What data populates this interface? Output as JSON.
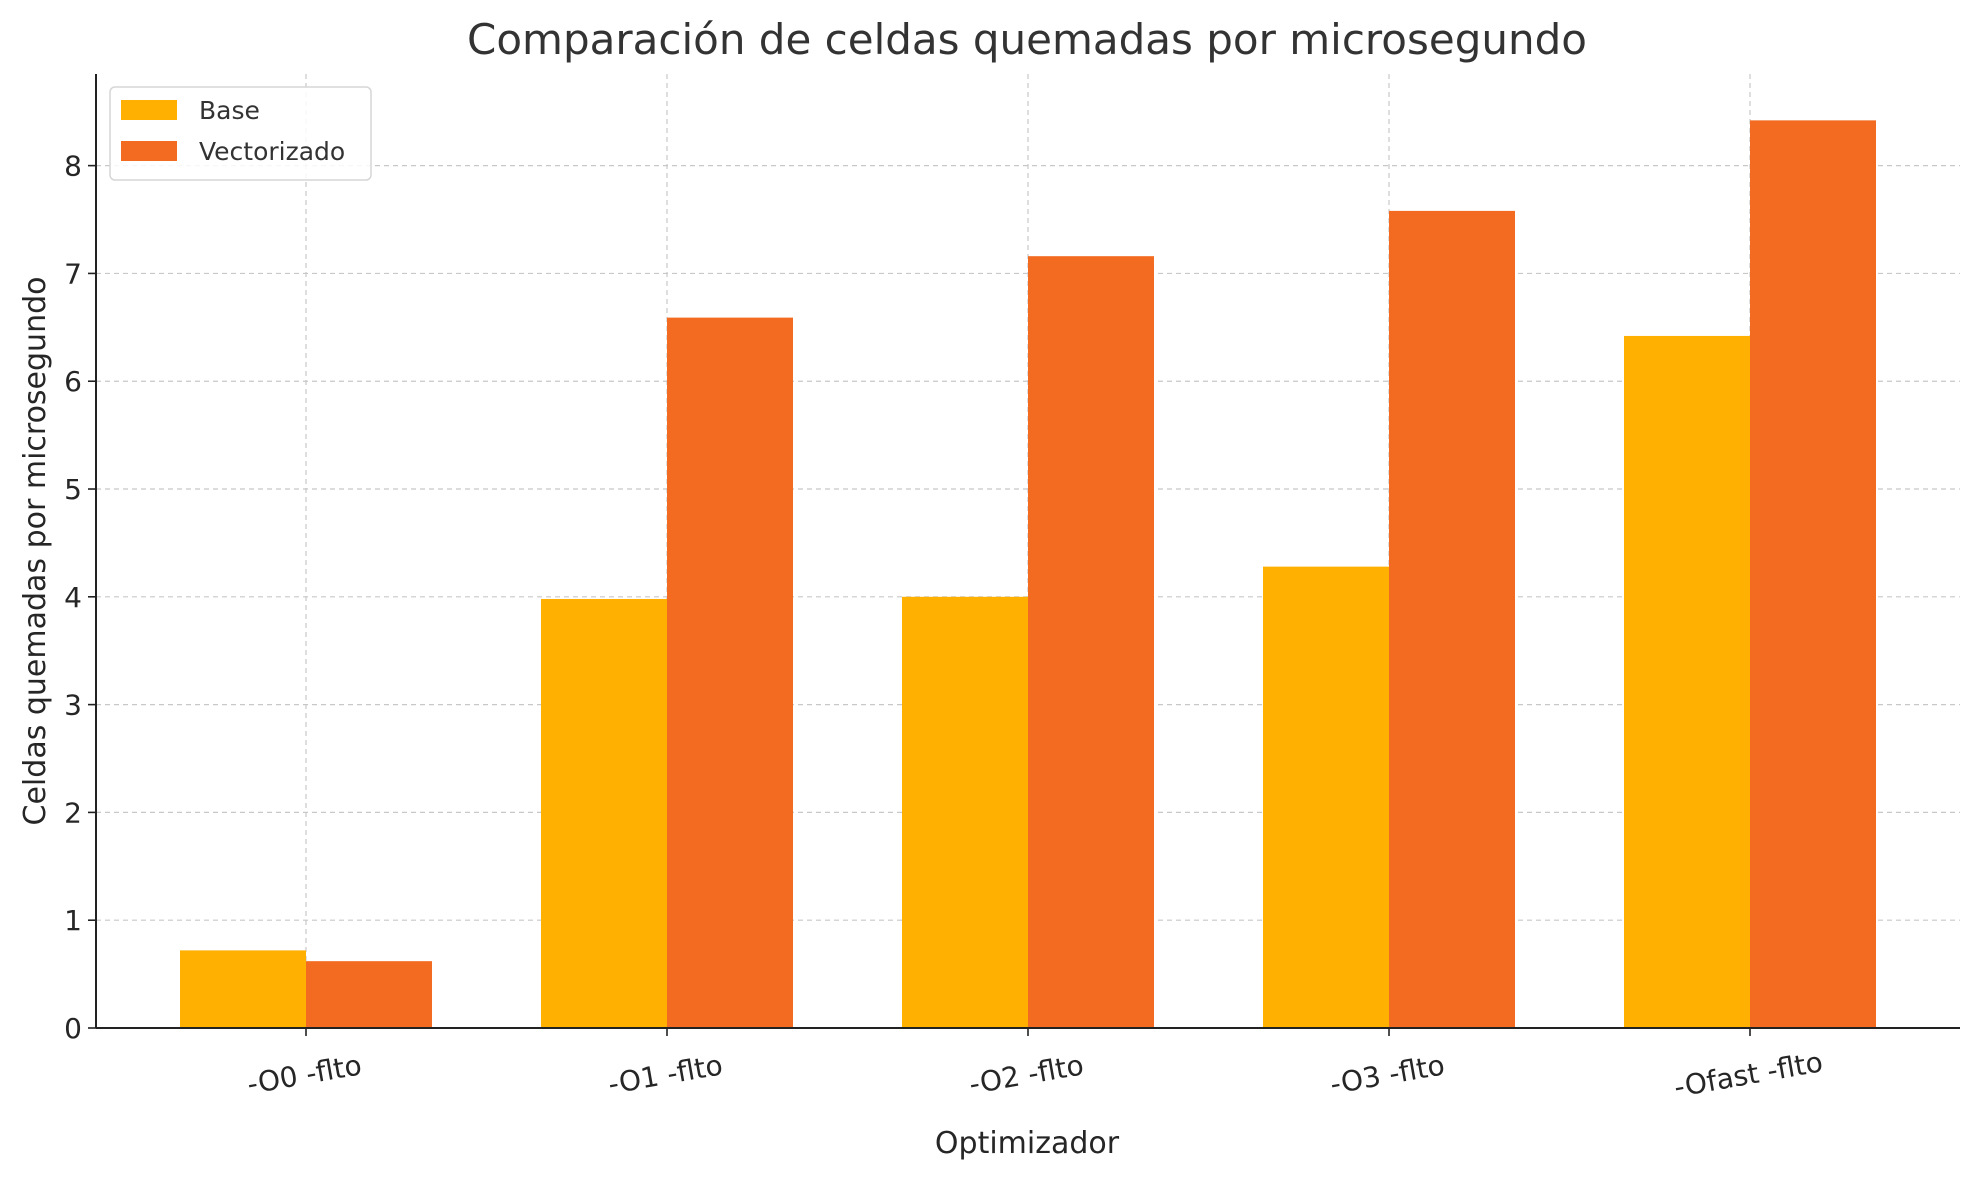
{
  "chart_data": {
    "type": "bar",
    "title": "Comparación de celdas quemadas por microsegundo",
    "xlabel": "Optimizador",
    "ylabel": "Celdas quemadas por microsegundo",
    "categories": [
      "-O0 -flto",
      "-O1 -flto",
      "-O2 -flto",
      "-O3 -flto",
      "-Ofast -flto"
    ],
    "series": [
      {
        "name": "Base",
        "values": [
          0.72,
          3.98,
          4.0,
          4.28,
          6.42
        ],
        "color": "#FFB000"
      },
      {
        "name": "Vectorizado",
        "values": [
          0.62,
          6.59,
          7.16,
          7.58,
          8.42
        ],
        "color": "#F26B21"
      }
    ],
    "ylim": [
      0,
      8.85
    ],
    "yticks": [
      0,
      1,
      2,
      3,
      4,
      5,
      6,
      7,
      8
    ],
    "grid": true,
    "legend_position": "top-left",
    "tick_label_rotation": "slanted"
  }
}
